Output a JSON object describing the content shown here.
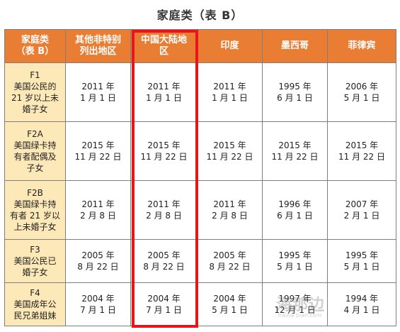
{
  "title": "家庭类（表 B）",
  "headers": [
    [
      "家庭类",
      "（表 B）"
    ],
    [
      "其他非特别",
      "列出地区"
    ],
    [
      "中国大陆地",
      "区"
    ],
    [
      "印度"
    ],
    [
      "墨西哥"
    ],
    [
      "菲律宾"
    ]
  ],
  "rows": [
    {
      "category": [
        "F1",
        "美国公民的",
        "21 岁以上未",
        "婚子女"
      ],
      "dates": [
        [
          "2011 年",
          "1 月 1 日"
        ],
        [
          "2011 年",
          "1 月 1 日"
        ],
        [
          "2011 年",
          "1 月 1 日"
        ],
        [
          "1995 年",
          "6 月 1 日"
        ],
        [
          "2006 年",
          "5 月 1 日"
        ]
      ]
    },
    {
      "category": [
        "F2A",
        "美国绿卡持",
        "有者配偶及",
        "子女"
      ],
      "dates": [
        [
          "2015 年",
          "11 月 22 日"
        ],
        [
          "2015 年",
          "11 月 22 日"
        ],
        [
          "2015 年",
          "11 月 22 日"
        ],
        [
          "2015 年",
          "11 月 22 日"
        ],
        [
          "2015 年",
          "11 月 22 日"
        ]
      ]
    },
    {
      "category": [
        "F2B",
        "美国绿卡持",
        "有者 21 岁以",
        "上未婚子女"
      ],
      "dates": [
        [
          "2011 年",
          "2 月 8 日"
        ],
        [
          "2011 年",
          "2 月 8 日"
        ],
        [
          "2011 年",
          "2 月 8 日"
        ],
        [
          "1996 年",
          "6 月 1 日"
        ],
        [
          "2007 年",
          "2 月 1 日"
        ]
      ]
    },
    {
      "category": [
        "F3",
        "美国公民已",
        "婚子女"
      ],
      "dates": [
        [
          "2005 年",
          "8 月 22 日"
        ],
        [
          "2005 年",
          "8 月 22 日"
        ],
        [
          "2005 年",
          "8 月 22 日"
        ],
        [
          "1995 年",
          "5 月 1 日"
        ],
        [
          "1995 年",
          "5 月 1 日"
        ]
      ]
    },
    {
      "category": [
        "F4",
        "美国成年公",
        "民兄弟姐妹"
      ],
      "dates": [
        [
          "2004 年",
          "7 月 1 日"
        ],
        [
          "2004 年",
          "7 月 1 日"
        ],
        [
          "2004 年",
          "5 月 1 日"
        ],
        [
          "1997 年",
          "12 月 1 日"
        ],
        [
          "1994 年",
          "4 月 1 日"
        ]
      ]
    }
  ],
  "highlight_color": "#e8161c",
  "header_color": "#ea7d34",
  "category_color": "#fde8b8",
  "watermark": "海那边",
  "watermark_sub": "haina bian.com"
}
